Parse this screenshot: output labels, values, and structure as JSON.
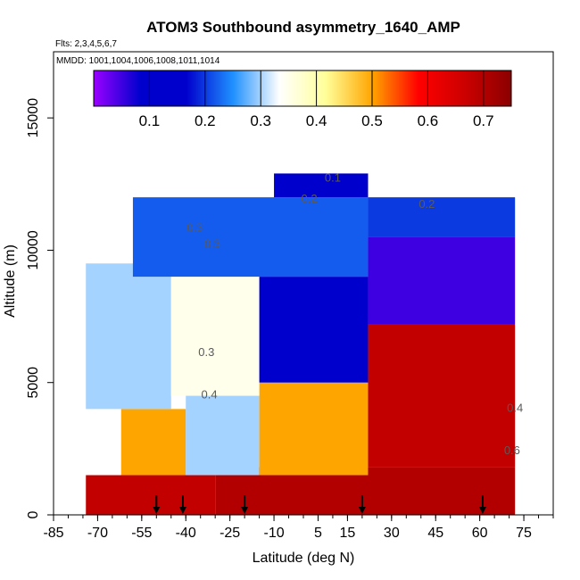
{
  "chart_data": {
    "type": "heatmap",
    "title": "ATOM3 Southbound asymmetry_1640_AMP",
    "flights_label": "Flts: 2,3,4,5,6,7",
    "dates_label": "MMDD: 1001,1004,1006,1008,1011,1014",
    "xlabel": "Latitude (deg N)",
    "ylabel": "Altitude (m)",
    "xlim": [
      -85,
      85
    ],
    "ylim": [
      0,
      17500
    ],
    "x_ticks": [
      -85,
      -70,
      -55,
      -40,
      -25,
      -10,
      5,
      15,
      30,
      45,
      60,
      75
    ],
    "x_tick_labels": [
      "-85",
      "-70",
      "-55",
      "-40",
      "-25",
      "-10",
      "5",
      "15",
      "30",
      "45",
      "60",
      "75"
    ],
    "y_ticks": [
      0,
      5000,
      10000,
      15000
    ],
    "y_tick_labels": [
      "0",
      "5000",
      "10000",
      "15000"
    ],
    "colorbar": {
      "range": [
        0,
        0.75
      ],
      "ticks": [
        0.1,
        0.2,
        0.3,
        0.4,
        0.5,
        0.6,
        0.7
      ],
      "tick_labels": [
        "0.1",
        "0.2",
        "0.3",
        "0.4",
        "0.5",
        "0.6",
        "0.7"
      ],
      "stops": [
        "#9a00ff",
        "#0000cd",
        "#0000cd",
        "#1f90ff",
        "#ffffff",
        "#ffff99",
        "#ffa500",
        "#ff0000",
        "#cc0000",
        "#8b0000"
      ]
    },
    "contour_labels": [
      {
        "text": "0.1",
        "lat": 10,
        "alt": 12600
      },
      {
        "text": "0.2",
        "lat": 2,
        "alt": 11800
      },
      {
        "text": "0.2",
        "lat": 42,
        "alt": 11600
      },
      {
        "text": "0.3",
        "lat": -37,
        "alt": 10700
      },
      {
        "text": "0.3",
        "lat": -31,
        "alt": 10100
      },
      {
        "text": "0.3",
        "lat": -33,
        "alt": 6000
      },
      {
        "text": "0.4",
        "lat": -32,
        "alt": 4400
      },
      {
        "text": "0.6",
        "lat": 71,
        "alt": 2300
      },
      {
        "text": "0.4",
        "lat": 72,
        "alt": 3900
      }
    ],
    "profile_arrows_lat": [
      -50,
      -41,
      -20,
      20,
      61
    ],
    "heatmap_regions": [
      {
        "lat": [
          -74,
          -30
        ],
        "alt": [
          0,
          1500
        ],
        "value": 0.68
      },
      {
        "lat": [
          -30,
          72
        ],
        "alt": [
          0,
          1800
        ],
        "value": 0.7
      },
      {
        "lat": [
          22,
          72
        ],
        "alt": [
          1800,
          7200
        ],
        "value": 0.68
      },
      {
        "lat": [
          -62,
          -40
        ],
        "alt": [
          1500,
          4000
        ],
        "value": 0.5
      },
      {
        "lat": [
          -40,
          -15
        ],
        "alt": [
          1500,
          4500
        ],
        "value": 0.3
      },
      {
        "lat": [
          -15,
          22
        ],
        "alt": [
          1500,
          5000
        ],
        "value": 0.5
      },
      {
        "lat": [
          -74,
          -45
        ],
        "alt": [
          4000,
          9500
        ],
        "value": 0.3
      },
      {
        "lat": [
          -45,
          -15
        ],
        "alt": [
          4500,
          9500
        ],
        "value": 0.35
      },
      {
        "lat": [
          -15,
          22
        ],
        "alt": [
          5000,
          9000
        ],
        "value": 0.15
      },
      {
        "lat": [
          22,
          72
        ],
        "alt": [
          7200,
          10500
        ],
        "value": 0.05
      },
      {
        "lat": [
          -58,
          22
        ],
        "alt": [
          9000,
          12000
        ],
        "value": 0.22
      },
      {
        "lat": [
          22,
          72
        ],
        "alt": [
          10500,
          12000
        ],
        "value": 0.2
      },
      {
        "lat": [
          -10,
          22
        ],
        "alt": [
          12000,
          12900
        ],
        "value": 0.1
      }
    ]
  }
}
